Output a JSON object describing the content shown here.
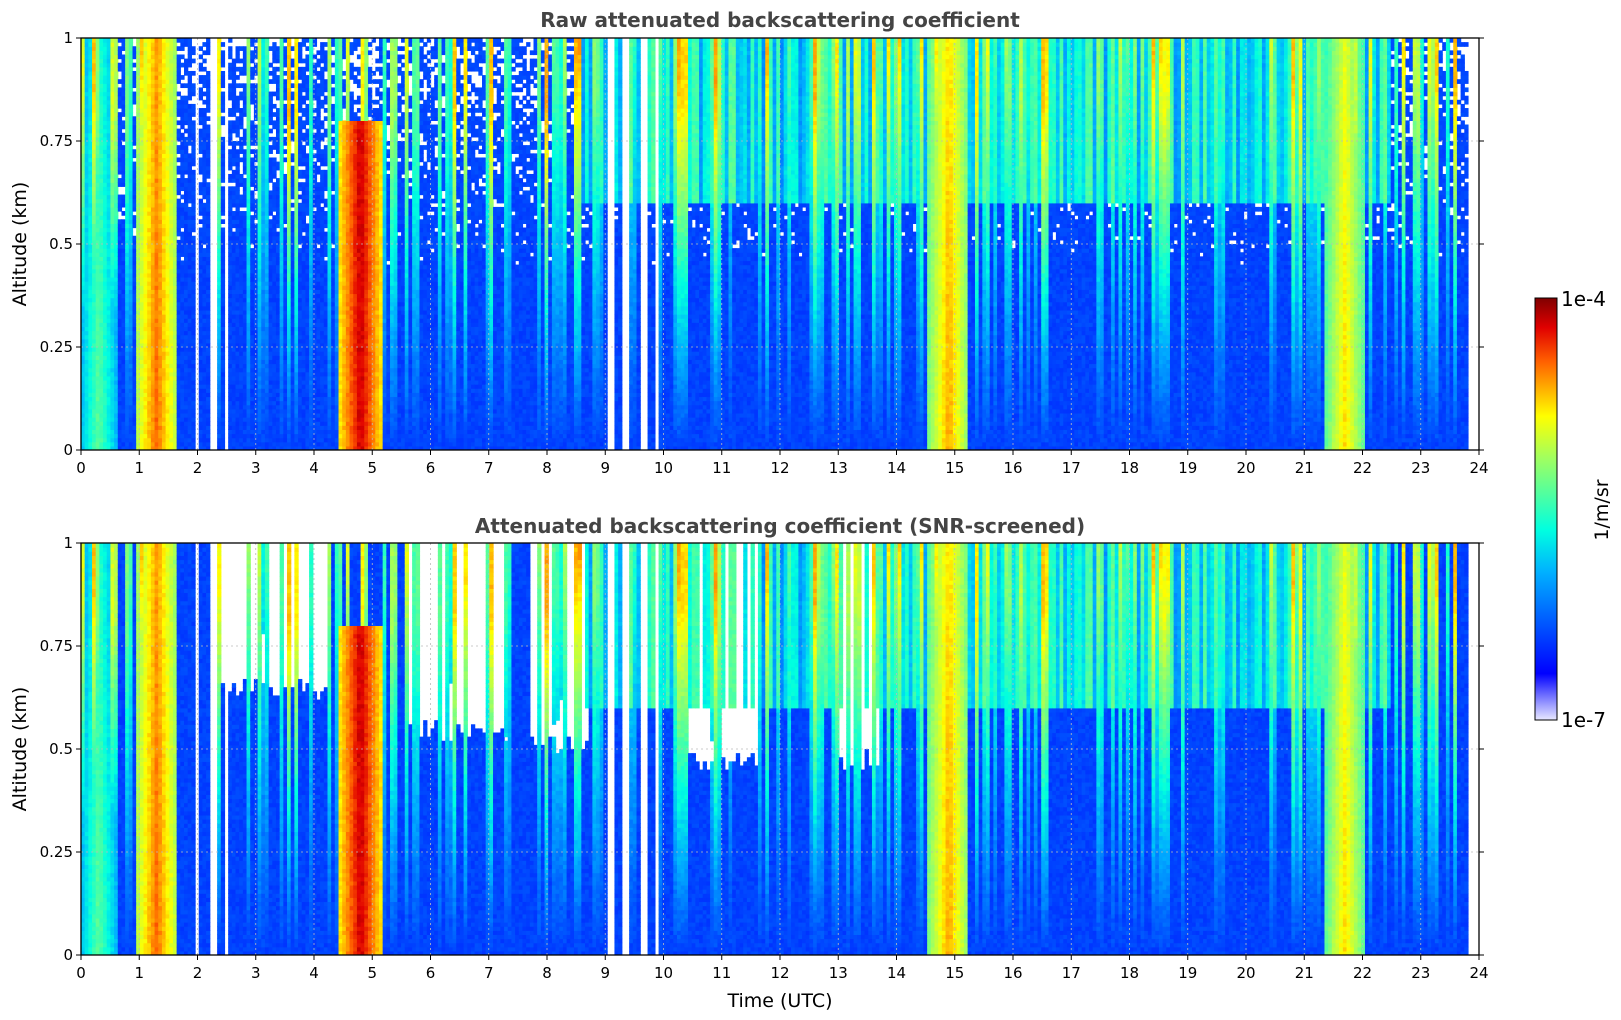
{
  "chart_data": [
    {
      "type": "heatmap",
      "title": "Raw attenuated backscattering coefficient",
      "xlabel": "",
      "ylabel": "Altitude (km)",
      "xlim": [
        0,
        24
      ],
      "ylim": [
        0,
        1
      ],
      "xticks": [
        "0",
        "1",
        "2",
        "3",
        "4",
        "5",
        "6",
        "7",
        "8",
        "9",
        "10",
        "11",
        "12",
        "13",
        "14",
        "15",
        "16",
        "17",
        "18",
        "19",
        "20",
        "21",
        "22",
        "23",
        "24"
      ],
      "yticks": [
        "0",
        "0.25",
        "0.5",
        "0.75",
        "1"
      ],
      "grid": true,
      "screened": false,
      "colorscale": "jet",
      "missing_hours": [
        2.0,
        2.28,
        2.5,
        9.1,
        9.35,
        9.65,
        9.9
      ],
      "strong_features": [
        {
          "hour": 0.3,
          "alt_top": 1.0,
          "level": 0.55
        },
        {
          "hour": 1.3,
          "alt_top": 1.0,
          "level": 0.85
        },
        {
          "hour": 4.8,
          "alt_top": 0.8,
          "level": 0.95
        },
        {
          "hour": 14.9,
          "alt_top": 1.0,
          "level": 0.8
        },
        {
          "hour": 21.7,
          "alt_top": 1.0,
          "level": 0.75
        }
      ]
    },
    {
      "type": "heatmap",
      "title": "Attenuated backscattering coefficient (SNR-screened)",
      "xlabel": "Time (UTC)",
      "ylabel": "Altitude (km)",
      "xlim": [
        0,
        24
      ],
      "ylim": [
        0,
        1
      ],
      "xticks": [
        "0",
        "1",
        "2",
        "3",
        "4",
        "5",
        "6",
        "7",
        "8",
        "9",
        "10",
        "11",
        "12",
        "13",
        "14",
        "15",
        "16",
        "17",
        "18",
        "19",
        "20",
        "21",
        "22",
        "23",
        "24"
      ],
      "yticks": [
        "0",
        "0.25",
        "0.5",
        "0.75",
        "1"
      ],
      "grid": true,
      "screened": true,
      "colorscale": "jet",
      "missing_hours": [
        2.0,
        2.28,
        2.5,
        9.1,
        9.35,
        9.65,
        9.9
      ],
      "screened_regions": [
        {
          "from": 2.2,
          "to": 4.2,
          "alt_floor": 0.62
        },
        {
          "from": 5.6,
          "to": 7.3,
          "alt_floor": 0.52
        },
        {
          "from": 7.7,
          "to": 8.7,
          "alt_floor": 0.48
        },
        {
          "from": 10.4,
          "to": 11.6,
          "alt_floor": 0.45
        },
        {
          "from": 13.0,
          "to": 13.7,
          "alt_floor": 0.45
        }
      ]
    }
  ],
  "colorbar": {
    "label": "1/m/sr",
    "max_label": "1e-4",
    "min_label": "1e-7",
    "scale": "log",
    "range": [
      "1e-7",
      "1e-4"
    ]
  }
}
